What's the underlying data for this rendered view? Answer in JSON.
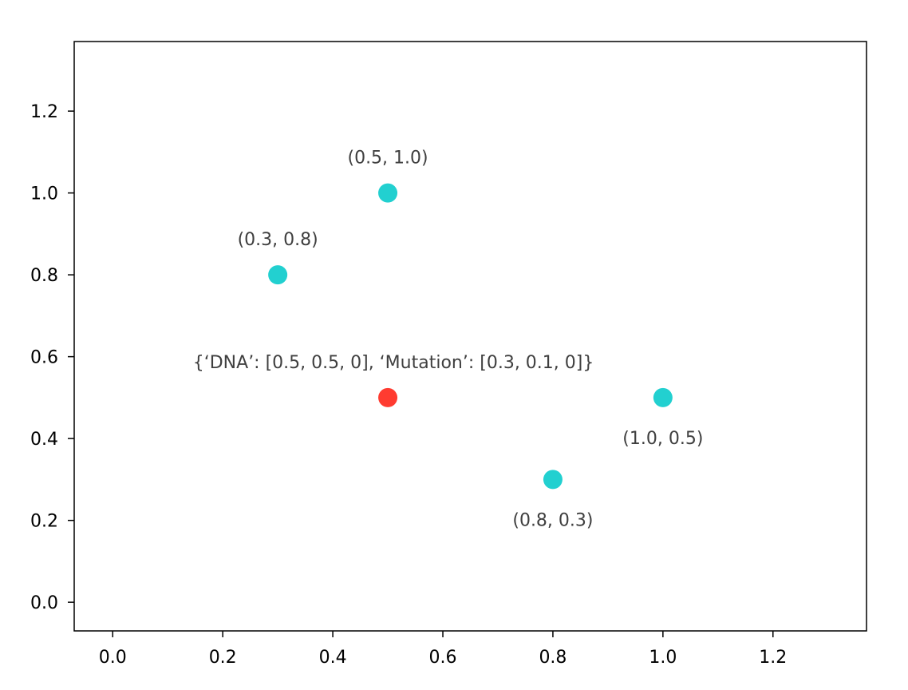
{
  "chart_data": {
    "type": "scatter",
    "title": "",
    "xlabel": "",
    "ylabel": "",
    "xlim": [
      -0.07,
      1.37
    ],
    "ylim": [
      -0.07,
      1.37
    ],
    "xticks": [
      "0.0",
      "0.2",
      "0.4",
      "0.6",
      "0.8",
      "1.0",
      "1.2"
    ],
    "yticks": [
      "0.0",
      "0.2",
      "0.4",
      "0.6",
      "0.8",
      "1.0",
      "1.2"
    ],
    "grid": false,
    "points": [
      {
        "x": 0.5,
        "y": 1.0,
        "label": "(0.5, 1.0)",
        "color": "#22d0d0",
        "label_position": "above"
      },
      {
        "x": 0.3,
        "y": 0.8,
        "label": "(0.3, 0.8)",
        "color": "#22d0d0",
        "label_position": "above"
      },
      {
        "x": 0.5,
        "y": 0.5,
        "label": "{‘DNA’: [0.5, 0.5, 0], ‘Mutation’: [0.3, 0.1, 0]}",
        "color": "#ff3b30",
        "label_position": "above"
      },
      {
        "x": 1.0,
        "y": 0.5,
        "label": "(1.0, 0.5)",
        "color": "#22d0d0",
        "label_position": "below"
      },
      {
        "x": 0.8,
        "y": 0.3,
        "label": "(0.8, 0.3)",
        "color": "#22d0d0",
        "label_position": "below"
      }
    ]
  },
  "colors": {
    "frame": "#000000",
    "background": "#ffffff",
    "label_text": "#3f3f3f"
  }
}
